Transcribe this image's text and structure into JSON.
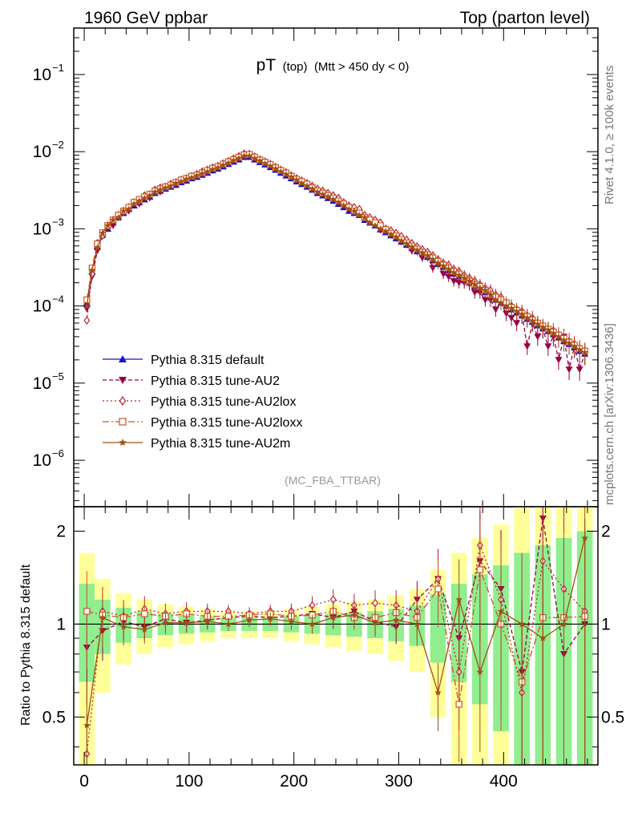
{
  "header": {
    "left": "1960 GeV ppbar",
    "right": "Top (parton level)"
  },
  "side_labels": {
    "rivet": "Rivet 4.1.0, ≥ 100k events",
    "mcplots": "mcplots.cern.ch [arXiv:1306.3436]"
  },
  "chart_data": [
    {
      "type": "line",
      "panel": "main",
      "title_main": "pT",
      "title_sub": "(top)",
      "title_cut": "(Mtt > 450 dy < 0)",
      "analysis_tag": "(MC_FBA_TTBAR)",
      "xlabel": "",
      "ylabel": "",
      "xlim": [
        -10,
        490
      ],
      "ylog": true,
      "ylim": [
        2.5e-07,
        0.4
      ],
      "ytick_values": [
        1e-06,
        1e-05,
        0.0001,
        0.001,
        0.01,
        0.1
      ],
      "ytick_labels": [
        "10",
        "10",
        "10",
        "10",
        "10",
        "10"
      ],
      "ytick_exponents": [
        "−6",
        "−5",
        "−4",
        "−3",
        "−2",
        "−1"
      ],
      "legend_position": "lower-left",
      "x": [
        2.5,
        7.5,
        12.5,
        17.5,
        22.5,
        27.5,
        32.5,
        37.5,
        42.5,
        47.5,
        52.5,
        57.5,
        62.5,
        67.5,
        72.5,
        77.5,
        82.5,
        87.5,
        92.5,
        97.5,
        102.5,
        107.5,
        112.5,
        117.5,
        122.5,
        127.5,
        132.5,
        137.5,
        142.5,
        147.5,
        152.5,
        157.5,
        162.5,
        167.5,
        172.5,
        177.5,
        182.5,
        187.5,
        192.5,
        197.5,
        202.5,
        207.5,
        212.5,
        217.5,
        222.5,
        227.5,
        232.5,
        237.5,
        242.5,
        247.5,
        252.5,
        257.5,
        262.5,
        267.5,
        272.5,
        277.5,
        282.5,
        287.5,
        292.5,
        297.5,
        302.5,
        307.5,
        312.5,
        317.5,
        322.5,
        327.5,
        332.5,
        337.5,
        342.5,
        347.5,
        352.5,
        357.5,
        362.5,
        367.5,
        372.5,
        377.5,
        382.5,
        387.5,
        392.5,
        397.5,
        402.5,
        407.5,
        412.5,
        417.5,
        422.5,
        427.5,
        432.5,
        437.5,
        442.5,
        447.5,
        452.5,
        457.5,
        462.5,
        467.5,
        472.5,
        477.5
      ],
      "series": [
        {
          "name": "Pythia 8.315 default",
          "color": "#1414c8",
          "dash": "",
          "marker": "triangle-up",
          "values": [
            0.00011,
            0.00028,
            0.00058,
            0.00083,
            0.001,
            0.0012,
            0.0014,
            0.0016,
            0.0018,
            0.002,
            0.0022,
            0.0024,
            0.0026,
            0.0029,
            0.0031,
            0.0033,
            0.0035,
            0.0037,
            0.004,
            0.0042,
            0.0045,
            0.0047,
            0.005,
            0.0053,
            0.0057,
            0.006,
            0.0064,
            0.0069,
            0.0074,
            0.0079,
            0.0085,
            0.0085,
            0.0079,
            0.0073,
            0.0068,
            0.0063,
            0.0058,
            0.0053,
            0.0049,
            0.0045,
            0.0041,
            0.0038,
            0.0035,
            0.0032,
            0.0029,
            0.0027,
            0.0025,
            0.0023,
            0.0021,
            0.0019,
            0.0017,
            0.0016,
            0.0015,
            0.0013,
            0.0012,
            0.0011,
            0.00098,
            0.0009,
            0.00082,
            0.00075,
            0.00068,
            0.00062,
            0.00056,
            0.00051,
            0.00047,
            0.00043,
            0.00039,
            0.00035,
            0.00032,
            0.00029,
            0.00026,
            0.00024,
            0.00022,
            0.0002,
            0.00018,
            0.000165,
            0.00015,
            0.000135,
            0.00012,
            0.00011,
            0.0001,
            9e-05,
            8.2e-05,
            7.5e-05,
            6.8e-05,
            6.2e-05,
            5.6e-05,
            5.1e-05,
            4.7e-05,
            4.3e-05,
            3.9e-05,
            3.5e-05,
            3.2e-05,
            2.9e-05,
            2.6e-05,
            2.4e-05
          ]
        },
        {
          "name": "Pythia 8.315 tune-AU2",
          "color": "#990044",
          "dash": "5,3",
          "marker": "triangle-down",
          "values": [
            9.2e-05,
            0.00024,
            0.00052,
            0.00081,
            0.001,
            0.0011,
            0.0014,
            0.0016,
            0.0017,
            0.0021,
            0.0021,
            0.0025,
            0.0025,
            0.0031,
            0.003,
            0.0034,
            0.0036,
            0.0037,
            0.0042,
            0.0042,
            0.0048,
            0.0048,
            0.0052,
            0.0054,
            0.006,
            0.0061,
            0.0066,
            0.0072,
            0.0077,
            0.0082,
            0.0088,
            0.0091,
            0.0083,
            0.0077,
            0.0071,
            0.0066,
            0.006,
            0.0056,
            0.0051,
            0.0047,
            0.0043,
            0.004,
            0.0037,
            0.0034,
            0.003,
            0.0029,
            0.0026,
            0.0024,
            0.0022,
            0.002,
            0.0018,
            0.0017,
            0.0016,
            0.0014,
            0.0013,
            0.0012,
            0.00096,
            0.00097,
            0.00083,
            0.00081,
            0.00068,
            0.00066,
            0.00052,
            0.00054,
            0.00042,
            0.00046,
            0.00031,
            0.00035,
            0.00026,
            0.00024,
            0.00021,
            0.0002,
            0.0002,
            0.00019,
            0.00015,
            0.00015,
            0.00012,
            0.00012,
            9e-05,
            0.00011,
            8e-05,
            7e-05,
            6e-05,
            8e-05,
            3e-05,
            6e-05,
            4e-05,
            5e-05,
            3e-05,
            4e-05,
            2e-05,
            4e-05,
            1.5e-05,
            3e-05,
            1.5e-05,
            2.4e-05
          ]
        },
        {
          "name": "Pythia 8.315 tune-AU2lox",
          "color": "#bb2233",
          "dash": "2,3",
          "marker": "diamond-open",
          "values": [
            6.5e-05,
            0.00026,
            0.00065,
            0.00082,
            0.0011,
            0.0013,
            0.0015,
            0.0017,
            0.0019,
            0.0022,
            0.0023,
            0.0027,
            0.0028,
            0.0032,
            0.0034,
            0.0035,
            0.0038,
            0.004,
            0.0043,
            0.0045,
            0.0048,
            0.0051,
            0.0055,
            0.0058,
            0.0062,
            0.0065,
            0.007,
            0.0075,
            0.0081,
            0.0087,
            0.0094,
            0.0093,
            0.0086,
            0.0079,
            0.0074,
            0.0069,
            0.0063,
            0.0058,
            0.0054,
            0.0049,
            0.0045,
            0.0042,
            0.0039,
            0.0036,
            0.0033,
            0.0031,
            0.0029,
            0.0027,
            0.0025,
            0.0022,
            0.002,
            0.0019,
            0.0018,
            0.0015,
            0.0014,
            0.0013,
            0.0012,
            0.001,
            0.00095,
            0.00088,
            0.0008,
            0.00072,
            0.00065,
            0.00059,
            0.00054,
            0.0005,
            0.00045,
            0.0004,
            0.00036,
            0.00034,
            0.0003,
            0.00028,
            0.00025,
            0.00023,
            0.00021,
            0.00019,
            0.00017,
            0.00016,
            0.00014,
            0.00013,
            0.00011,
            0.0001,
            9e-05,
            8.5e-05,
            7.5e-05,
            7e-05,
            6e-05,
            5.5e-05,
            5e-05,
            4.8e-05,
            4.2e-05,
            3.8e-05,
            3.5e-05,
            3.2e-05,
            2.8e-05,
            2.6e-05
          ]
        },
        {
          "name": "Pythia 8.315 tune-AU2loxx",
          "color": "#cc5522",
          "dash": "8,3,2,3",
          "marker": "square-open",
          "values": [
            0.00012,
            0.00031,
            0.00064,
            0.00089,
            0.0011,
            0.0013,
            0.0015,
            0.0017,
            0.0019,
            0.0022,
            0.0024,
            0.0026,
            0.0028,
            0.0031,
            0.0033,
            0.0035,
            0.0037,
            0.004,
            0.0043,
            0.0045,
            0.0048,
            0.005,
            0.0053,
            0.0057,
            0.0061,
            0.0064,
            0.0069,
            0.0074,
            0.0079,
            0.0085,
            0.0091,
            0.0092,
            0.0085,
            0.0078,
            0.0073,
            0.0068,
            0.0062,
            0.0057,
            0.0053,
            0.0048,
            0.0044,
            0.0041,
            0.0038,
            0.0034,
            0.0031,
            0.0029,
            0.0027,
            0.0025,
            0.0023,
            0.0021,
            0.0019,
            0.0017,
            0.0016,
            0.0014,
            0.0013,
            0.0012,
            0.0011,
            0.00098,
            0.00088,
            0.00081,
            0.00073,
            0.00066,
            0.0006,
            0.00055,
            0.0005,
            0.00046,
            0.00042,
            0.00038,
            0.00034,
            0.00031,
            0.00028,
            0.00026,
            0.00023,
            0.00021,
            0.00019,
            0.00018,
            0.00016,
            0.00014,
            0.00013,
            0.00012,
            0.00011,
            9.6e-05,
            8.8e-05,
            8e-05,
            7.3e-05,
            6.6e-05,
            6e-05,
            5.5e-05,
            5e-05,
            4.6e-05,
            4.2e-05,
            3.8e-05,
            3.4e-05,
            3.1e-05,
            2.8e-05,
            2.6e-05
          ]
        },
        {
          "name": "Pythia 8.315 tune-AU2m",
          "color": "#a05010",
          "dash": "",
          "marker": "star",
          "values": [
            0.0001,
            0.00029,
            0.00057,
            0.00088,
            0.0011,
            0.0013,
            0.0014,
            0.0017,
            0.0018,
            0.0021,
            0.0023,
            0.0025,
            0.0027,
            0.003,
            0.0032,
            0.0034,
            0.0036,
            0.0039,
            0.0041,
            0.0044,
            0.0046,
            0.0049,
            0.0052,
            0.0055,
            0.0059,
            0.0062,
            0.0067,
            0.0071,
            0.0077,
            0.0082,
            0.0088,
            0.0088,
            0.0082,
            0.0076,
            0.007,
            0.0065,
            0.006,
            0.0055,
            0.0051,
            0.0047,
            0.0043,
            0.0039,
            0.0036,
            0.0033,
            0.003,
            0.0028,
            0.0026,
            0.0024,
            0.0022,
            0.002,
            0.0018,
            0.0017,
            0.0015,
            0.0014,
            0.0012,
            0.0011,
            0.001,
            0.00093,
            0.00085,
            0.00078,
            0.0007,
            0.00064,
            0.00058,
            0.00053,
            0.00049,
            0.00045,
            0.0004,
            0.00036,
            0.00033,
            0.0003,
            0.00027,
            0.00025,
            0.00023,
            0.00021,
            0.00019,
            0.00017,
            0.00016,
            0.00014,
            0.00012,
            0.00011,
            0.0001,
            9.3e-05,
            8.5e-05,
            7.8e-05,
            7e-05,
            6.4e-05,
            5.8e-05,
            5.3e-05,
            4.9e-05,
            4.4e-05,
            4e-05,
            3.6e-05,
            3.3e-05,
            3e-05,
            2.7e-05,
            2.5e-05
          ]
        }
      ]
    },
    {
      "type": "line",
      "panel": "ratio",
      "ylabel": "Ratio to Pythia 8.315 default",
      "xlim": [
        -10,
        490
      ],
      "ylim": [
        0.35,
        2.4
      ],
      "ylog": true,
      "ytick_values": [
        0.5,
        1,
        2
      ],
      "ytick_labels": [
        "0.5",
        "1",
        "2"
      ],
      "xtick_values": [
        0,
        100,
        200,
        300,
        400
      ],
      "xtick_labels": [
        "0",
        "100",
        "200",
        "300",
        "400"
      ],
      "reference_line": 1,
      "band_inner_color": "#90ee90",
      "band_outer_color": "#ffff99",
      "x": [
        2.5,
        17.5,
        37.5,
        57.5,
        77.5,
        97.5,
        117.5,
        137.5,
        157.5,
        177.5,
        197.5,
        217.5,
        237.5,
        257.5,
        277.5,
        297.5,
        317.5,
        337.5,
        357.5,
        377.5,
        397.5,
        417.5,
        437.5,
        457.5,
        477.5
      ],
      "band_inner_halfwidth": [
        0.35,
        0.2,
        0.13,
        0.1,
        0.08,
        0.07,
        0.06,
        0.05,
        0.05,
        0.05,
        0.06,
        0.07,
        0.08,
        0.09,
        0.1,
        0.12,
        0.15,
        0.25,
        0.35,
        0.45,
        0.55,
        0.7,
        0.8,
        0.9,
        1.0
      ],
      "band_outer_halfwidth": [
        0.7,
        0.4,
        0.26,
        0.2,
        0.16,
        0.14,
        0.12,
        0.1,
        0.1,
        0.1,
        0.12,
        0.14,
        0.16,
        0.18,
        0.2,
        0.24,
        0.3,
        0.5,
        0.7,
        0.9,
        1.1,
        1.4,
        1.6,
        1.8,
        2.0
      ],
      "series": [
        {
          "name": "Pythia 8.315 tune-AU2",
          "values": [
            0.84,
            0.95,
            1.02,
            0.98,
            1.04,
            1.01,
            1.03,
            1.05,
            1.06,
            1.05,
            1.06,
            1.08,
            1.05,
            1.1,
            1.02,
            0.98,
            1.2,
            1.4,
            0.9,
            1.6,
            1.3,
            0.7,
            2.2,
            0.8,
            1.0
          ]
        },
        {
          "name": "Pythia 8.315 tune-AU2lox",
          "values": [
            0.38,
            1.1,
            1.06,
            1.12,
            1.08,
            1.1,
            1.1,
            1.1,
            1.08,
            1.1,
            1.1,
            1.15,
            1.2,
            1.15,
            1.17,
            1.15,
            1.1,
            1.4,
            0.7,
            1.8,
            1.2,
            0.6,
            1.6,
            1.3,
            1.1
          ]
        },
        {
          "name": "Pythia 8.315 tune-AU2loxx",
          "values": [
            1.1,
            1.07,
            1.05,
            1.08,
            1.06,
            1.08,
            1.06,
            1.06,
            1.07,
            1.08,
            1.06,
            1.07,
            1.1,
            1.05,
            1.05,
            1.09,
            1.05,
            1.3,
            0.55,
            1.5,
            1.0,
            0.65,
            1.05,
            1.05,
            1.06
          ]
        },
        {
          "name": "Pythia 8.315 tune-AU2m",
          "values": [
            0.47,
            1.05,
            0.98,
            0.96,
            1.01,
            1.01,
            1.02,
            1.0,
            1.03,
            1.04,
            1.02,
            1.0,
            1.05,
            1.07,
            1.01,
            1.03,
            1.0,
            0.6,
            1.2,
            0.7,
            1.1,
            1.0,
            0.9,
            1.0,
            1.9
          ]
        }
      ]
    }
  ]
}
